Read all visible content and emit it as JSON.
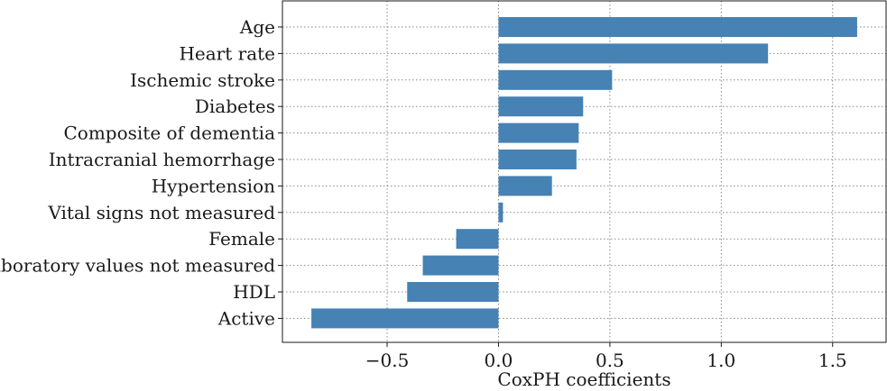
{
  "chart_data": {
    "type": "bar",
    "orientation": "horizontal",
    "categories": [
      "Age",
      "Heart rate",
      "Ischemic stroke",
      "Diabetes",
      "Composite of dementia",
      "Intracranial hemorrhage",
      "Hypertension",
      "Vital signs not measured",
      "Female",
      "Laboratory values not measured",
      "HDL",
      "Active"
    ],
    "values": [
      1.61,
      1.21,
      0.51,
      0.38,
      0.36,
      0.35,
      0.24,
      0.02,
      -0.19,
      -0.34,
      -0.41,
      -0.84
    ],
    "xlabel": "CoxPH coefficients",
    "ylabel": "",
    "title": "",
    "xlim": [
      -0.97,
      1.74
    ],
    "xticks": [
      -0.5,
      0.0,
      0.5,
      1.0,
      1.5
    ],
    "xtick_labels": [
      "−0.5",
      "0.0",
      "0.5",
      "1.0",
      "1.5"
    ],
    "bar_color": "#4682b4",
    "grid": true,
    "legend": "none"
  }
}
